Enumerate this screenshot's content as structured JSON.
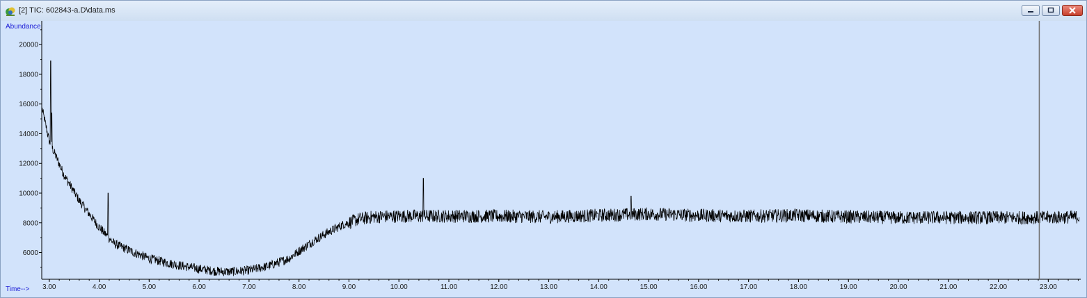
{
  "window": {
    "title": "[2] TIC: 602843-a.D\\data.ms",
    "icon": "chromatogram-app-icon"
  },
  "colors": {
    "plot_background": "#d2e3fb",
    "trace": "#000000",
    "axis_label": "#1c1cd6",
    "cursor_line": "#707070"
  },
  "chart_data": {
    "type": "line",
    "ylabel": "Abundance",
    "xlabel": "Time-->",
    "xlim": [
      2.85,
      23.65
    ],
    "ylim": [
      4200,
      21600
    ],
    "x_ticks": [
      3.0,
      4.0,
      5.0,
      6.0,
      7.0,
      8.0,
      9.0,
      10.0,
      11.0,
      12.0,
      13.0,
      14.0,
      15.0,
      16.0,
      17.0,
      18.0,
      19.0,
      20.0,
      21.0,
      22.0,
      23.0
    ],
    "x_tick_labels": [
      "3.00",
      "4.00",
      "5.00",
      "6.00",
      "7.00",
      "8.00",
      "9.00",
      "10.00",
      "11.00",
      "12.00",
      "13.00",
      "14.00",
      "15.00",
      "16.00",
      "17.00",
      "18.00",
      "19.00",
      "20.00",
      "21.00",
      "22.00",
      "23.00"
    ],
    "y_ticks": [
      6000,
      8000,
      10000,
      12000,
      14000,
      16000,
      18000,
      20000
    ],
    "y_tick_labels": [
      "6000",
      "8000",
      "10000",
      "12000",
      "14000",
      "16000",
      "18000",
      "20000"
    ],
    "grid": false,
    "cursor_x": 22.82,
    "series": [
      {
        "baseline": {
          "x": [
            2.85,
            3.0,
            3.3,
            3.6,
            4.0,
            4.3,
            4.7,
            5.0,
            5.5,
            6.0,
            6.3,
            6.6,
            7.0,
            7.4,
            7.8,
            8.0,
            8.3,
            8.6,
            8.9,
            9.2,
            9.5,
            10.0,
            11.0,
            12.0,
            13.0,
            14.0,
            15.0,
            16.0,
            17.0,
            18.0,
            19.0,
            20.0,
            21.0,
            22.0,
            23.0,
            23.6
          ],
          "y": [
            15800,
            13500,
            11200,
            9500,
            7700,
            6600,
            6000,
            5600,
            5200,
            4900,
            4750,
            4700,
            4800,
            5100,
            5600,
            6100,
            6800,
            7400,
            7900,
            8250,
            8400,
            8450,
            8450,
            8450,
            8400,
            8500,
            8600,
            8500,
            8450,
            8500,
            8400,
            8350,
            8350,
            8350,
            8350,
            8400
          ]
        },
        "peaks": {
          "x": [
            3.03,
            3.05,
            4.18,
            10.49,
            14.65
          ],
          "y": [
            18900,
            15400,
            10000,
            11000,
            9800
          ]
        },
        "noise_amplitude": 450
      }
    ]
  }
}
